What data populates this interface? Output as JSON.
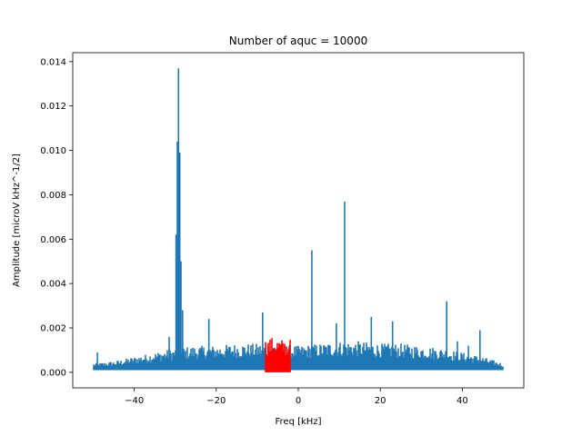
{
  "chart_data": {
    "type": "line",
    "title": "Number of aquc = 10000",
    "xlabel": "Freq [kHz]",
    "ylabel": "Amplitude [microV kHz^-1/2]",
    "xlim": [
      -55.0,
      55.0
    ],
    "ylim": [
      -0.0007,
      0.0144
    ],
    "xticks": [
      -40,
      -20,
      0,
      20,
      40
    ],
    "xtick_labels": [
      "−40",
      "−20",
      "0",
      "20",
      "40"
    ],
    "yticks": [
      0.0,
      0.002,
      0.004,
      0.006,
      0.008,
      0.01,
      0.012,
      0.014
    ],
    "ytick_labels": [
      "0.000",
      "0.002",
      "0.004",
      "0.006",
      "0.008",
      "0.010",
      "0.012",
      "0.014"
    ],
    "grid": false,
    "colors": {
      "main": "#1f77b4",
      "highlight": "#ff0000"
    },
    "series": [
      {
        "color": "#1f77b4",
        "x_range": [
          -50,
          50
        ],
        "noise_band": {
          "x": [
            -50,
            -45,
            -40,
            -35,
            -30,
            -25,
            -20,
            -15,
            -10,
            -5,
            0,
            5,
            10,
            15,
            20,
            25,
            30,
            35,
            40,
            45,
            50
          ],
          "lower": [
            0.0001,
            0.0001,
            0.0001,
            0.0001,
            0.0001,
            0.0001,
            0.0001,
            0.0001,
            0.0001,
            0.0001,
            0.0001,
            0.0001,
            0.0001,
            0.0001,
            0.0001,
            0.0001,
            0.0001,
            0.0001,
            0.0001,
            0.0001,
            0.0001
          ],
          "upper": [
            0.0004,
            0.0005,
            0.0007,
            0.0009,
            0.0011,
            0.0012,
            0.0012,
            0.0013,
            0.0013,
            0.0013,
            0.0012,
            0.0013,
            0.0014,
            0.0014,
            0.0013,
            0.0013,
            0.0012,
            0.0011,
            0.0009,
            0.0007,
            0.0004
          ]
        },
        "peaks": [
          {
            "x": -49.0,
            "y": 0.0009
          },
          {
            "x": -31.5,
            "y": 0.0016
          },
          {
            "x": -29.8,
            "y": 0.0062
          },
          {
            "x": -29.5,
            "y": 0.0104
          },
          {
            "x": -29.2,
            "y": 0.0137
          },
          {
            "x": -28.9,
            "y": 0.0099
          },
          {
            "x": -28.6,
            "y": 0.005
          },
          {
            "x": -28.2,
            "y": 0.0028
          },
          {
            "x": -21.8,
            "y": 0.0024
          },
          {
            "x": -8.7,
            "y": 0.0027
          },
          {
            "x": 3.3,
            "y": 0.0055
          },
          {
            "x": 9.3,
            "y": 0.0022
          },
          {
            "x": 11.3,
            "y": 0.0077
          },
          {
            "x": 17.8,
            "y": 0.0025
          },
          {
            "x": 23.0,
            "y": 0.0023
          },
          {
            "x": 36.2,
            "y": 0.0032
          },
          {
            "x": 38.8,
            "y": 0.0014
          },
          {
            "x": 41.5,
            "y": 0.0012
          },
          {
            "x": 44.3,
            "y": 0.0019
          }
        ]
      },
      {
        "color": "#ff0000",
        "x_range": [
          -8.0,
          -2.0
        ],
        "noise_band": {
          "x": [
            -8.0,
            -6.0,
            -4.0,
            -2.0
          ],
          "lower": [
            0.0,
            0.0,
            0.0,
            0.0
          ],
          "upper": [
            0.0015,
            0.0016,
            0.0015,
            0.0015
          ]
        }
      }
    ]
  }
}
